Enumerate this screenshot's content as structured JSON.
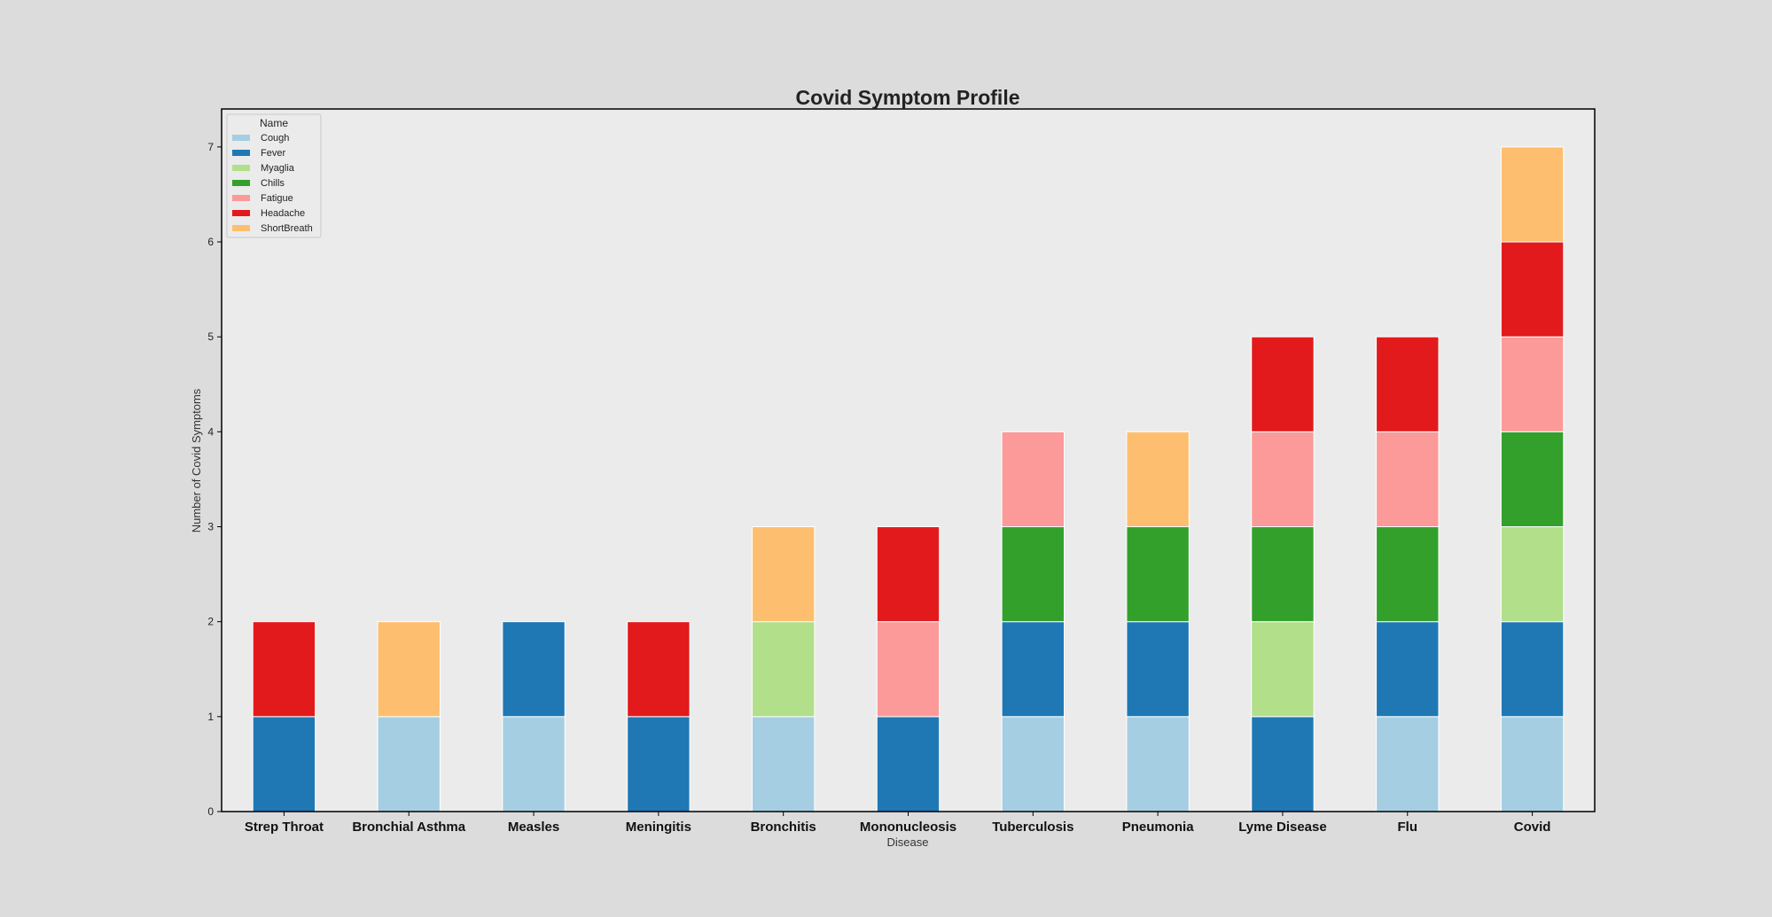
{
  "chart_data": {
    "type": "bar",
    "stacked": true,
    "title": "Covid Symptom Profile",
    "xlabel": "Disease",
    "ylabel": "Number of Covid Symptoms",
    "ylim": [
      0,
      7.4
    ],
    "yticks": [
      0,
      1,
      2,
      3,
      4,
      5,
      6,
      7
    ],
    "grid": false,
    "legend": {
      "title": "Name",
      "position": "top-left"
    },
    "categories": [
      "Strep Throat",
      "Bronchial Asthma",
      "Measles",
      "Meningitis",
      "Bronchitis",
      "Mononucleosis",
      "Tuberculosis",
      "Pneumonia",
      "Lyme Disease",
      "Flu",
      "Covid"
    ],
    "series": [
      {
        "name": "Cough",
        "color": "#a6cee3",
        "values": [
          0,
          1,
          1,
          0,
          1,
          0,
          1,
          1,
          0,
          1,
          1
        ]
      },
      {
        "name": "Fever",
        "color": "#1f78b4",
        "values": [
          1,
          0,
          1,
          1,
          0,
          1,
          1,
          1,
          1,
          1,
          1
        ]
      },
      {
        "name": "Myaglia",
        "color": "#b2df8a",
        "values": [
          0,
          0,
          0,
          0,
          1,
          0,
          0,
          0,
          1,
          0,
          1
        ]
      },
      {
        "name": "Chills",
        "color": "#33a02c",
        "values": [
          0,
          0,
          0,
          0,
          0,
          0,
          1,
          1,
          1,
          1,
          1
        ]
      },
      {
        "name": "Fatigue",
        "color": "#fb9a99",
        "values": [
          0,
          0,
          0,
          0,
          0,
          1,
          1,
          0,
          1,
          1,
          1
        ]
      },
      {
        "name": "Headache",
        "color": "#e31a1c",
        "values": [
          1,
          0,
          0,
          1,
          0,
          1,
          0,
          0,
          1,
          1,
          1
        ]
      },
      {
        "name": "ShortBreath",
        "color": "#fdbf6f",
        "values": [
          0,
          1,
          0,
          0,
          1,
          0,
          0,
          1,
          0,
          0,
          1
        ]
      }
    ],
    "colors": {
      "page_background": "#dcdcdc",
      "plot_background": "#ebebeb",
      "axis": "#000000"
    }
  }
}
